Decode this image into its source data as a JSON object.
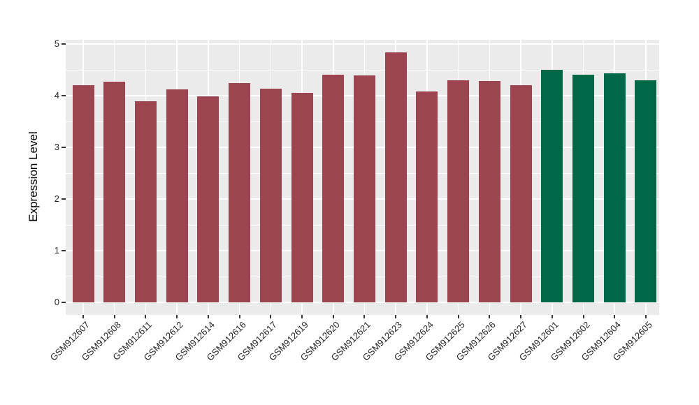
{
  "figure": {
    "background": "#FFFFFF",
    "panel_background": "#EBEBEB",
    "grid_color": "#FFFFFF",
    "tick_mark_color": "#333333",
    "tick_label_color": "#262626",
    "axis_title_color": "#000000"
  },
  "chart_data": {
    "type": "bar",
    "title": "",
    "xlabel": "",
    "ylabel": "Expression Level",
    "ylim": [
      0,
      5
    ],
    "yticks": [
      0,
      1,
      2,
      3,
      4,
      5
    ],
    "ytick_labels": [
      "0",
      "1",
      "2",
      "3",
      "4",
      "5"
    ],
    "grid": "white major gridlines at integers, minor at halves, vertical major at each category",
    "legend": "none",
    "x_tick_label_angle": 45,
    "categories": [
      "GSM912607",
      "GSM912608",
      "GSM912611",
      "GSM912612",
      "GSM912614",
      "GSM912616",
      "GSM912617",
      "GSM912619",
      "GSM912620",
      "GSM912621",
      "GSM912623",
      "GSM912624",
      "GSM912625",
      "GSM912626",
      "GSM912627",
      "GSM912601",
      "GSM912602",
      "GSM912604",
      "GSM912605"
    ],
    "values": [
      4.21,
      4.27,
      3.89,
      4.12,
      3.99,
      4.25,
      4.14,
      4.06,
      4.41,
      4.39,
      4.84,
      4.08,
      4.3,
      4.28,
      4.2,
      4.5,
      4.4,
      4.43,
      4.3
    ],
    "bar_colors": [
      "#9C4450",
      "#9C4450",
      "#9C4450",
      "#9C4450",
      "#9C4450",
      "#9C4450",
      "#9C4450",
      "#9C4450",
      "#9C4450",
      "#9C4450",
      "#9C4450",
      "#9C4450",
      "#9C4450",
      "#9C4450",
      "#9C4450",
      "#006847",
      "#006847",
      "#006847",
      "#006847"
    ],
    "group_colors": {
      "red_group": "#9C4450",
      "green_group": "#006847"
    }
  }
}
